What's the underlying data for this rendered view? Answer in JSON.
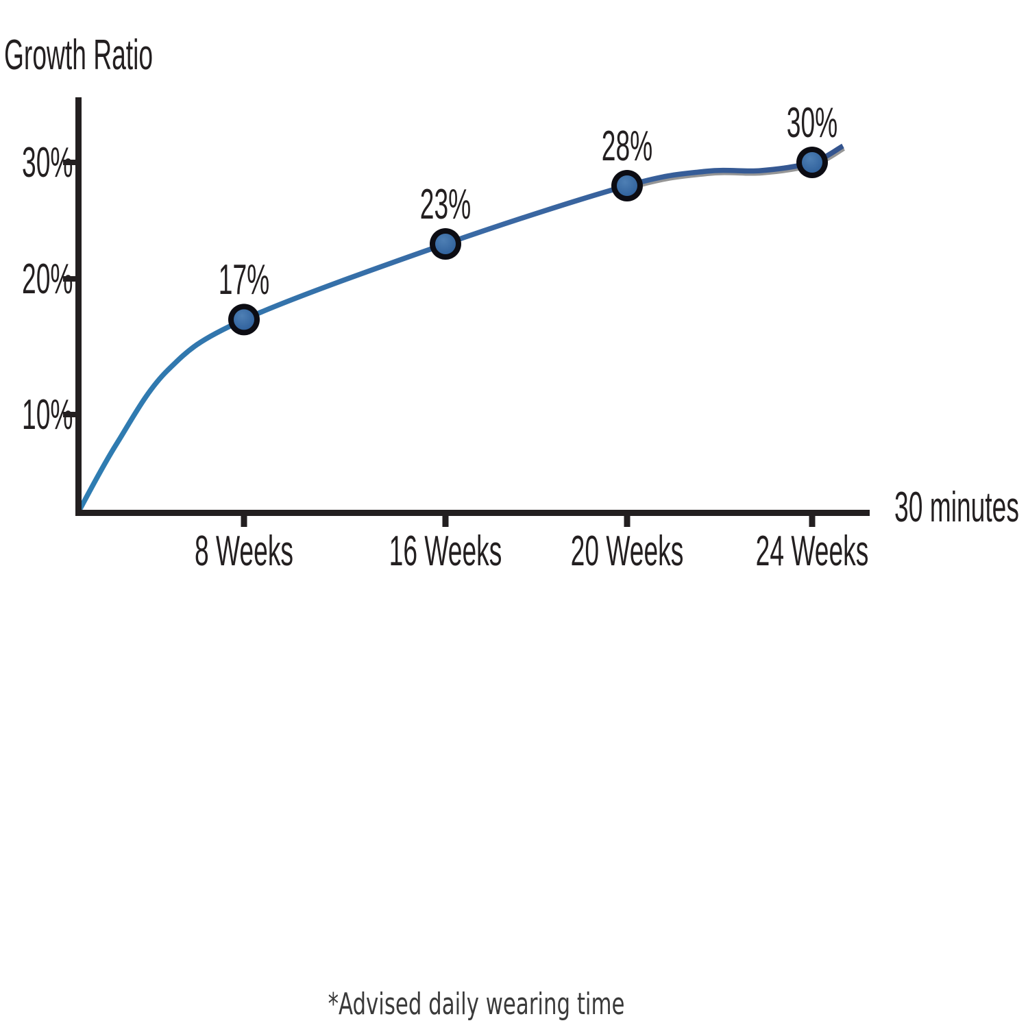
{
  "chart_data": {
    "type": "line",
    "title": "Growth Ratio",
    "x_axis_label": "30 minutes",
    "categories": [
      "8 Weeks",
      "16 Weeks",
      "20 Weeks",
      "24 Weeks"
    ],
    "values": [
      17,
      23,
      28,
      30
    ],
    "point_labels": [
      "17%",
      "23%",
      "28%",
      "30%"
    ],
    "y_ticks": [
      {
        "value": 10,
        "label": "10%"
      },
      {
        "value": 20,
        "label": "20%"
      },
      {
        "value": 30,
        "label": "30%"
      }
    ],
    "ylim": [
      0,
      33
    ],
    "grid": false,
    "legend": false,
    "axis_color": "#231f20",
    "text_color": "#231f20",
    "line_color_start": "#2e7db2",
    "line_color_mid": "#3a68a3",
    "line_color_end": "#34548e",
    "line_shadow_color": "#969696",
    "marker_ring_color": "#0c0c13",
    "marker_fill_light": "#4e7fb4",
    "marker_fill_dark": "#2b5c98"
  },
  "footnote": {
    "text": "*Advised daily wearing time"
  }
}
